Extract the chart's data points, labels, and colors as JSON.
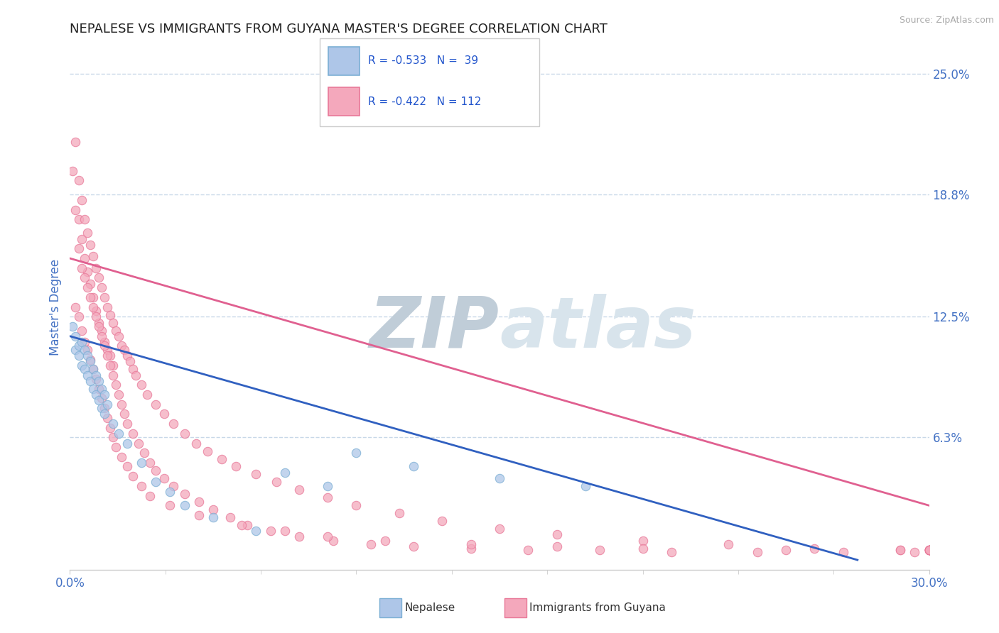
{
  "title": "NEPALESE VS IMMIGRANTS FROM GUYANA MASTER'S DEGREE CORRELATION CHART",
  "source_text": "Source: ZipAtlas.com",
  "ylabel": "Master's Degree",
  "xlim": [
    0.0,
    0.3
  ],
  "ylim": [
    -0.005,
    0.265
  ],
  "xtick_labels": [
    "0.0%",
    "30.0%"
  ],
  "xtick_values": [
    0.0,
    0.3
  ],
  "ytick_labels": [
    "6.3%",
    "12.5%",
    "18.8%",
    "25.0%"
  ],
  "ytick_values": [
    0.063,
    0.125,
    0.188,
    0.25
  ],
  "nep_line": [
    [
      0.0,
      0.115
    ],
    [
      0.275,
      0.0
    ]
  ],
  "guy_line": [
    [
      0.0,
      0.155
    ],
    [
      0.3,
      0.028
    ]
  ],
  "nepalese_x": [
    0.001,
    0.002,
    0.002,
    0.003,
    0.003,
    0.004,
    0.004,
    0.005,
    0.005,
    0.006,
    0.006,
    0.007,
    0.007,
    0.008,
    0.008,
    0.009,
    0.009,
    0.01,
    0.01,
    0.011,
    0.011,
    0.012,
    0.012,
    0.013,
    0.015,
    0.017,
    0.02,
    0.025,
    0.03,
    0.035,
    0.04,
    0.05,
    0.065,
    0.075,
    0.09,
    0.1,
    0.12,
    0.15,
    0.18
  ],
  "nepalese_y": [
    0.12,
    0.115,
    0.108,
    0.11,
    0.105,
    0.112,
    0.1,
    0.108,
    0.098,
    0.105,
    0.095,
    0.102,
    0.092,
    0.098,
    0.088,
    0.095,
    0.085,
    0.092,
    0.082,
    0.088,
    0.078,
    0.085,
    0.075,
    0.08,
    0.07,
    0.065,
    0.06,
    0.05,
    0.04,
    0.035,
    0.028,
    0.022,
    0.015,
    0.045,
    0.038,
    0.055,
    0.048,
    0.042,
    0.038
  ],
  "guyana_x": [
    0.001,
    0.002,
    0.002,
    0.003,
    0.003,
    0.004,
    0.004,
    0.005,
    0.005,
    0.006,
    0.006,
    0.007,
    0.007,
    0.008,
    0.008,
    0.009,
    0.009,
    0.01,
    0.01,
    0.011,
    0.011,
    0.012,
    0.012,
    0.013,
    0.013,
    0.014,
    0.014,
    0.015,
    0.015,
    0.016,
    0.017,
    0.018,
    0.019,
    0.02,
    0.021,
    0.022,
    0.023,
    0.025,
    0.027,
    0.03,
    0.033,
    0.036,
    0.04,
    0.044,
    0.048,
    0.053,
    0.058,
    0.065,
    0.072,
    0.08,
    0.09,
    0.1,
    0.115,
    0.13,
    0.15,
    0.17,
    0.2,
    0.23,
    0.26,
    0.29,
    0.003,
    0.004,
    0.005,
    0.006,
    0.007,
    0.008,
    0.009,
    0.01,
    0.011,
    0.012,
    0.013,
    0.014,
    0.015,
    0.016,
    0.017,
    0.018,
    0.019,
    0.02,
    0.022,
    0.024,
    0.026,
    0.028,
    0.03,
    0.033,
    0.036,
    0.04,
    0.045,
    0.05,
    0.056,
    0.062,
    0.07,
    0.08,
    0.092,
    0.105,
    0.12,
    0.14,
    0.16,
    0.185,
    0.21,
    0.24,
    0.27,
    0.295,
    0.002,
    0.003,
    0.004,
    0.005,
    0.006,
    0.007,
    0.008,
    0.009,
    0.01,
    0.011,
    0.012,
    0.013,
    0.014,
    0.015,
    0.016,
    0.018,
    0.02,
    0.022,
    0.025,
    0.028,
    0.035,
    0.045,
    0.06,
    0.075,
    0.09,
    0.11,
    0.14,
    0.17,
    0.2,
    0.25,
    0.29,
    0.3,
    0.3,
    0.3,
    0.3,
    0.3,
    0.3,
    0.3,
    0.3,
    0.3
  ],
  "guyana_y": [
    0.2,
    0.215,
    0.18,
    0.195,
    0.175,
    0.185,
    0.165,
    0.175,
    0.155,
    0.168,
    0.148,
    0.162,
    0.142,
    0.156,
    0.135,
    0.15,
    0.128,
    0.145,
    0.122,
    0.14,
    0.118,
    0.135,
    0.112,
    0.13,
    0.108,
    0.126,
    0.105,
    0.122,
    0.1,
    0.118,
    0.115,
    0.11,
    0.108,
    0.105,
    0.102,
    0.098,
    0.095,
    0.09,
    0.085,
    0.08,
    0.075,
    0.07,
    0.065,
    0.06,
    0.056,
    0.052,
    0.048,
    0.044,
    0.04,
    0.036,
    0.032,
    0.028,
    0.024,
    0.02,
    0.016,
    0.013,
    0.01,
    0.008,
    0.006,
    0.005,
    0.16,
    0.15,
    0.145,
    0.14,
    0.135,
    0.13,
    0.125,
    0.12,
    0.115,
    0.11,
    0.105,
    0.1,
    0.095,
    0.09,
    0.085,
    0.08,
    0.075,
    0.07,
    0.065,
    0.06,
    0.055,
    0.05,
    0.046,
    0.042,
    0.038,
    0.034,
    0.03,
    0.026,
    0.022,
    0.018,
    0.015,
    0.012,
    0.01,
    0.008,
    0.007,
    0.006,
    0.005,
    0.005,
    0.004,
    0.004,
    0.004,
    0.004,
    0.13,
    0.125,
    0.118,
    0.112,
    0.108,
    0.103,
    0.098,
    0.093,
    0.088,
    0.083,
    0.078,
    0.073,
    0.068,
    0.063,
    0.058,
    0.053,
    0.048,
    0.043,
    0.038,
    0.033,
    0.028,
    0.023,
    0.018,
    0.015,
    0.012,
    0.01,
    0.008,
    0.007,
    0.006,
    0.005,
    0.005,
    0.005,
    0.005,
    0.005,
    0.005,
    0.005,
    0.005,
    0.005,
    0.005,
    0.005
  ],
  "watermark_zip": "ZIP",
  "watermark_atlas": "atlas",
  "watermark_color": "#d0dde8",
  "background_color": "#ffffff",
  "grid_color": "#c8d8e8",
  "title_color": "#222222",
  "title_fontsize": 13,
  "source_color": "#aaaaaa",
  "axis_label_color": "#4472c4",
  "tick_label_color": "#4472c4",
  "nep_dot_color": "#aec6e8",
  "nep_dot_edge": "#7bafd4",
  "guy_dot_color": "#f4a8bc",
  "guy_dot_edge": "#e87898",
  "nep_line_color": "#3060c0",
  "guy_line_color": "#e06090"
}
